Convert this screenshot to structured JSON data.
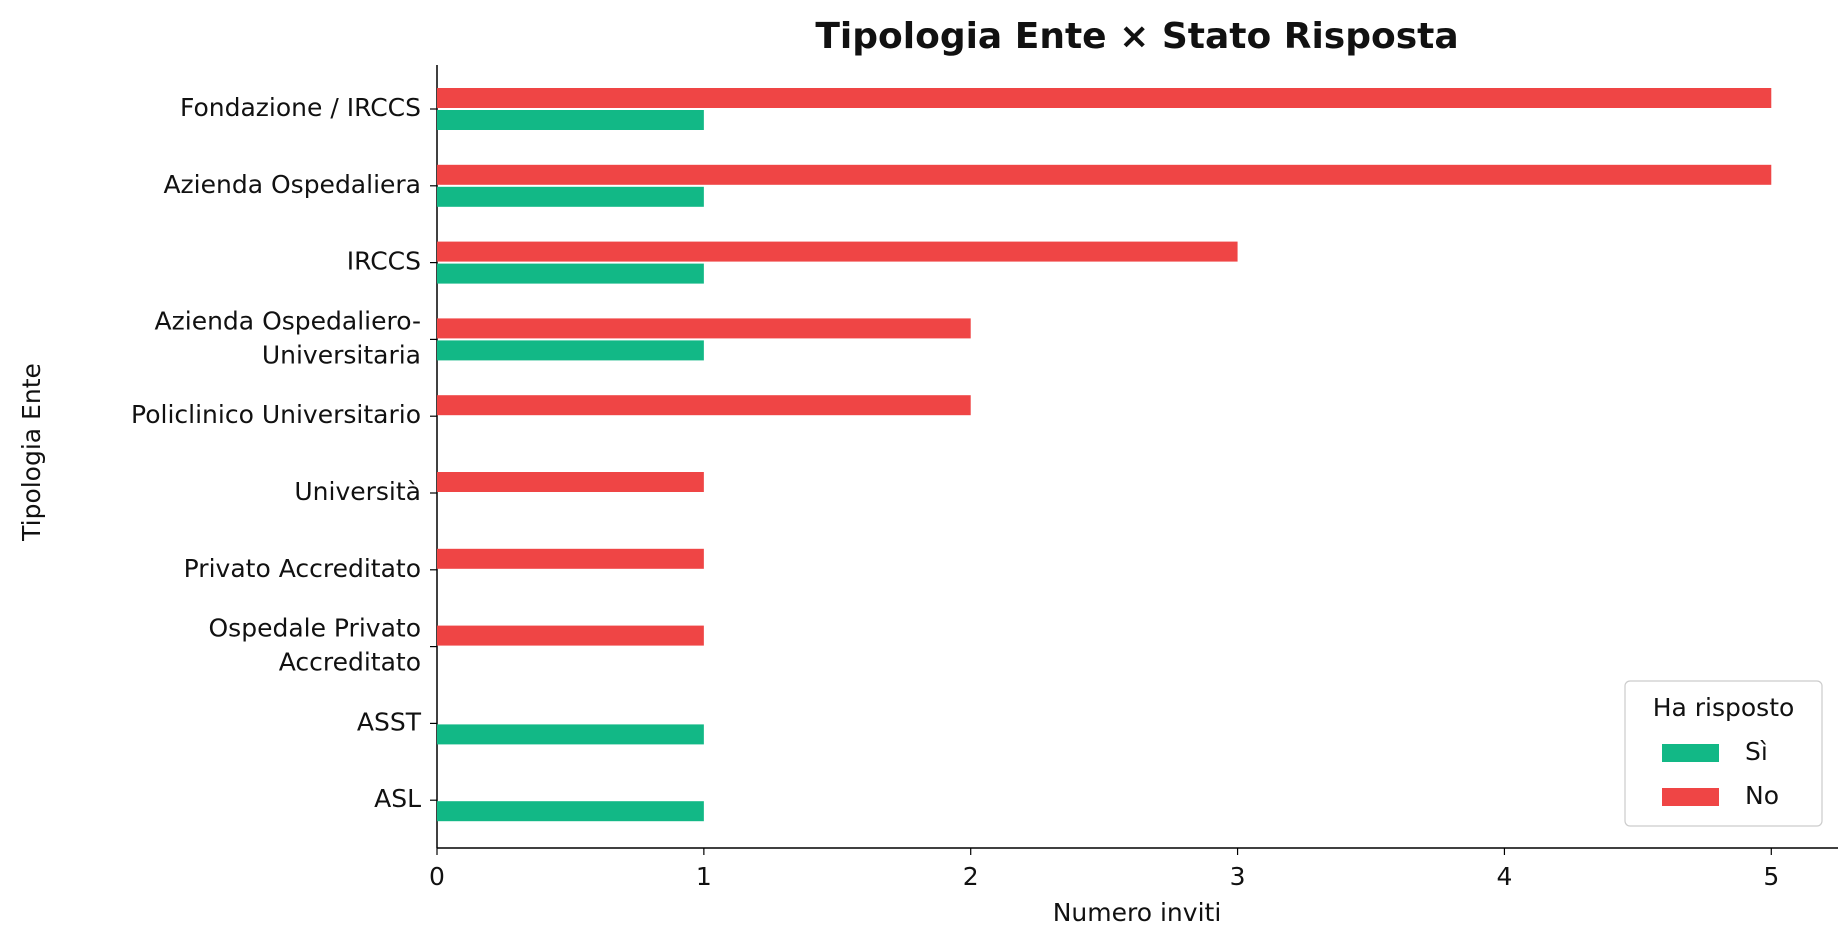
{
  "chart_data": {
    "type": "hbar",
    "title": "Tipologia Ente × Stato Risposta",
    "x_label": "Numero inviti",
    "y_label": "Tipologia Ente",
    "categories": [
      "Fondazione / IRCCS",
      "Azienda Ospedaliera",
      "IRCCS",
      "Azienda Ospedaliero-\nUniversitaria",
      "Policlinico Universitario",
      "Università",
      "Privato Accreditato",
      "Ospedale Privato\nAccreditato",
      "ASST",
      "ASL"
    ],
    "series": [
      {
        "name": "Sì",
        "color": "#12b886",
        "values": [
          1,
          1,
          1,
          1,
          0,
          0,
          0,
          0,
          1,
          1
        ]
      },
      {
        "name": "No",
        "color": "#ef4545",
        "values": [
          5,
          5,
          3,
          2,
          2,
          1,
          1,
          1,
          0,
          0
        ]
      }
    ],
    "xlim": [
      0,
      5.25
    ],
    "xticks": [
      0,
      1,
      2,
      3,
      4,
      5
    ],
    "legend_title": "Ha risposto",
    "legend_position": "lower right"
  }
}
